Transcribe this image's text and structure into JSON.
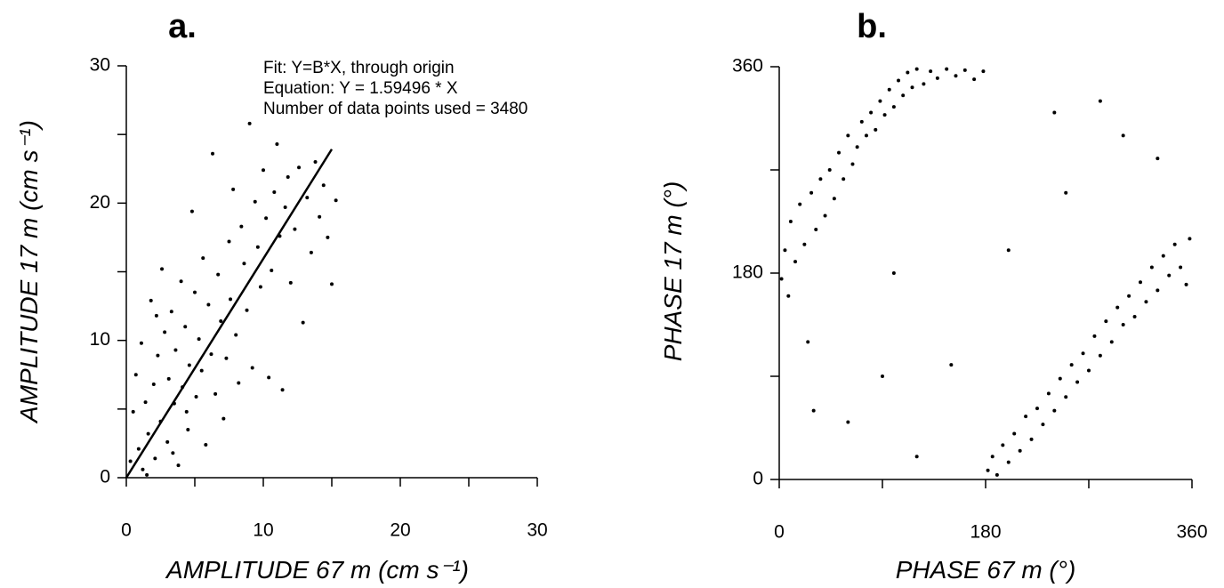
{
  "chart_data": [
    {
      "type": "scatter",
      "title": "a.",
      "xlabel": "AMPLITUDE    67 m   (cm s⁻¹)",
      "ylabel": "AMPLITUDE  17 m   (cm s⁻¹)",
      "annotations": [
        "Fit:  Y=B*X, through origin",
        "Equation: Y = 1.59496 * X",
        "Number of data points used = 3480"
      ],
      "fit_line": {
        "slope": 1.59496,
        "x": [
          0,
          15
        ]
      },
      "xlim": [
        0,
        30
      ],
      "ylim": [
        0,
        30
      ],
      "xticks": [
        0,
        10,
        20,
        30
      ],
      "yticks": [
        0,
        10,
        20,
        30
      ],
      "minor_xticks": [
        5,
        15,
        25
      ],
      "minor_yticks": [
        5,
        15,
        25
      ],
      "color": "#000000",
      "x": [
        0.3,
        0.5,
        0.7,
        0.9,
        1.1,
        1.2,
        1.4,
        1.6,
        1.8,
        2.0,
        2.1,
        2.3,
        2.5,
        2.6,
        2.8,
        3.0,
        3.1,
        3.3,
        3.5,
        3.6,
        3.8,
        4.0,
        4.1,
        4.3,
        4.5,
        4.6,
        4.8,
        5.0,
        5.1,
        5.3,
        5.5,
        5.6,
        5.8,
        6.0,
        6.2,
        6.3,
        6.5,
        6.7,
        6.9,
        7.1,
        7.3,
        7.5,
        7.6,
        7.8,
        8.0,
        8.2,
        8.4,
        8.6,
        8.8,
        9.0,
        9.2,
        9.4,
        9.6,
        9.8,
        10.0,
        10.2,
        10.4,
        10.6,
        10.8,
        11.0,
        11.2,
        11.4,
        11.6,
        11.8,
        12.0,
        12.3,
        12.6,
        12.9,
        13.2,
        13.5,
        13.8,
        14.1,
        14.4,
        14.7,
        15.3,
        15.0,
        1.5,
        3.4,
        2.2,
        4.4
      ],
      "y": [
        1.2,
        4.8,
        7.5,
        2.1,
        9.8,
        0.6,
        5.5,
        3.2,
        12.9,
        6.8,
        1.4,
        8.9,
        4.1,
        15.2,
        10.6,
        2.6,
        7.2,
        12.1,
        5.4,
        9.3,
        0.9,
        14.3,
        6.6,
        11.0,
        3.5,
        8.2,
        19.4,
        13.5,
        5.9,
        10.1,
        7.8,
        16.0,
        2.4,
        12.6,
        9.0,
        23.6,
        6.1,
        14.8,
        11.4,
        4.3,
        8.7,
        17.2,
        13.0,
        21.0,
        10.4,
        6.9,
        18.3,
        15.6,
        12.2,
        25.8,
        8.0,
        20.1,
        16.8,
        13.9,
        22.4,
        18.9,
        7.3,
        15.1,
        20.8,
        24.3,
        17.6,
        6.4,
        19.7,
        21.9,
        14.2,
        18.1,
        22.6,
        11.3,
        20.4,
        16.4,
        23.0,
        19.0,
        21.3,
        17.5,
        20.2,
        14.1,
        0.2,
        1.8,
        11.8,
        4.8
      ]
    },
    {
      "type": "scatter",
      "title": "b.",
      "xlabel": "PHASE  67 m (°)",
      "ylabel": "PHASE  17 m  (°)",
      "xlim": [
        0,
        360
      ],
      "ylim": [
        0,
        360
      ],
      "xticks": [
        0,
        180,
        360
      ],
      "yticks": [
        0,
        180,
        360
      ],
      "minor_xticks": [
        90,
        270
      ],
      "minor_yticks": [
        90,
        270
      ],
      "color": "#000000",
      "x": [
        2,
        5,
        8,
        10,
        14,
        18,
        22,
        25,
        28,
        32,
        36,
        40,
        44,
        48,
        52,
        56,
        60,
        64,
        68,
        72,
        76,
        80,
        84,
        88,
        92,
        96,
        100,
        104,
        108,
        112,
        116,
        120,
        126,
        132,
        138,
        146,
        154,
        162,
        170,
        178,
        182,
        186,
        190,
        195,
        200,
        205,
        210,
        215,
        220,
        225,
        230,
        235,
        240,
        245,
        250,
        255,
        260,
        265,
        270,
        275,
        280,
        285,
        290,
        295,
        300,
        305,
        310,
        315,
        320,
        325,
        330,
        335,
        340,
        345,
        350,
        355,
        358,
        150,
        60,
        300,
        250,
        100,
        200,
        330,
        30,
        120,
        280,
        90,
        240
      ],
      "y": [
        175,
        200,
        160,
        225,
        190,
        240,
        205,
        120,
        250,
        218,
        262,
        230,
        270,
        245,
        285,
        262,
        300,
        275,
        290,
        312,
        300,
        320,
        305,
        330,
        318,
        340,
        325,
        348,
        335,
        355,
        342,
        358,
        345,
        356,
        350,
        358,
        352,
        357,
        349,
        356,
        8,
        20,
        4,
        30,
        15,
        40,
        25,
        55,
        35,
        62,
        48,
        75,
        60,
        88,
        72,
        100,
        85,
        110,
        95,
        125,
        108,
        138,
        120,
        150,
        135,
        160,
        142,
        172,
        155,
        185,
        165,
        195,
        178,
        205,
        185,
        170,
        210,
        100,
        50,
        300,
        250,
        180,
        200,
        280,
        60,
        20,
        330,
        90,
        320
      ]
    }
  ]
}
